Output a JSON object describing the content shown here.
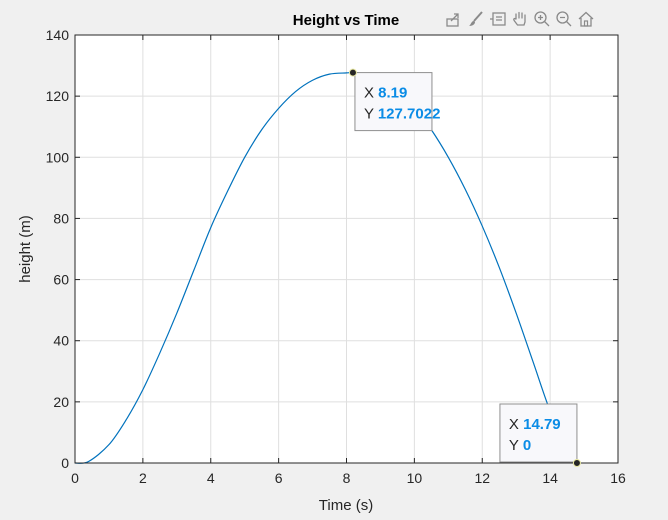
{
  "toolbar": {
    "buttons": [
      {
        "name": "export-icon"
      },
      {
        "name": "brush-icon"
      },
      {
        "name": "data-tips-icon"
      },
      {
        "name": "pan-hand-icon"
      },
      {
        "name": "zoom-in-icon"
      },
      {
        "name": "zoom-out-icon"
      },
      {
        "name": "home-icon"
      }
    ]
  },
  "chart_data": {
    "type": "line",
    "title": "Height vs Time",
    "xlabel": "Time (s)",
    "ylabel": "height (m)",
    "xlim": [
      0,
      16
    ],
    "ylim": [
      0,
      140
    ],
    "xticks": [
      0,
      2,
      4,
      6,
      8,
      10,
      12,
      14,
      16
    ],
    "yticks": [
      0,
      20,
      40,
      60,
      80,
      100,
      120,
      140
    ],
    "grid": true,
    "series": [
      {
        "color": "#0072bd",
        "x": [
          0,
          0.4,
          1,
          1.5,
          2,
          2.5,
          3,
          3.5,
          4,
          4.5,
          5,
          5.5,
          6,
          6.5,
          7,
          7.5,
          8,
          8.19,
          8.5,
          9,
          9.5,
          10,
          10.5,
          11,
          11.5,
          12,
          12.5,
          13,
          13.5,
          14,
          14.5,
          14.79
        ],
        "y": [
          0,
          0.5,
          6,
          14,
          24,
          36,
          49,
          63,
          77,
          89,
          100,
          109,
          116,
          121.5,
          125.2,
          127.2,
          127.6,
          127.7022,
          127.3,
          125.5,
          122,
          116.5,
          109,
          100,
          89.5,
          77.5,
          64,
          49,
          33,
          17,
          4.5,
          0
        ]
      }
    ],
    "datatips": [
      {
        "x_label": "X",
        "x_value": "8.19",
        "y_label": "Y",
        "y_value": "127.7022",
        "x": 8.19,
        "y": 127.7022
      },
      {
        "x_label": "X",
        "x_value": "14.79",
        "y_label": "Y",
        "y_value": "0",
        "x": 14.79,
        "y": 0
      }
    ]
  }
}
